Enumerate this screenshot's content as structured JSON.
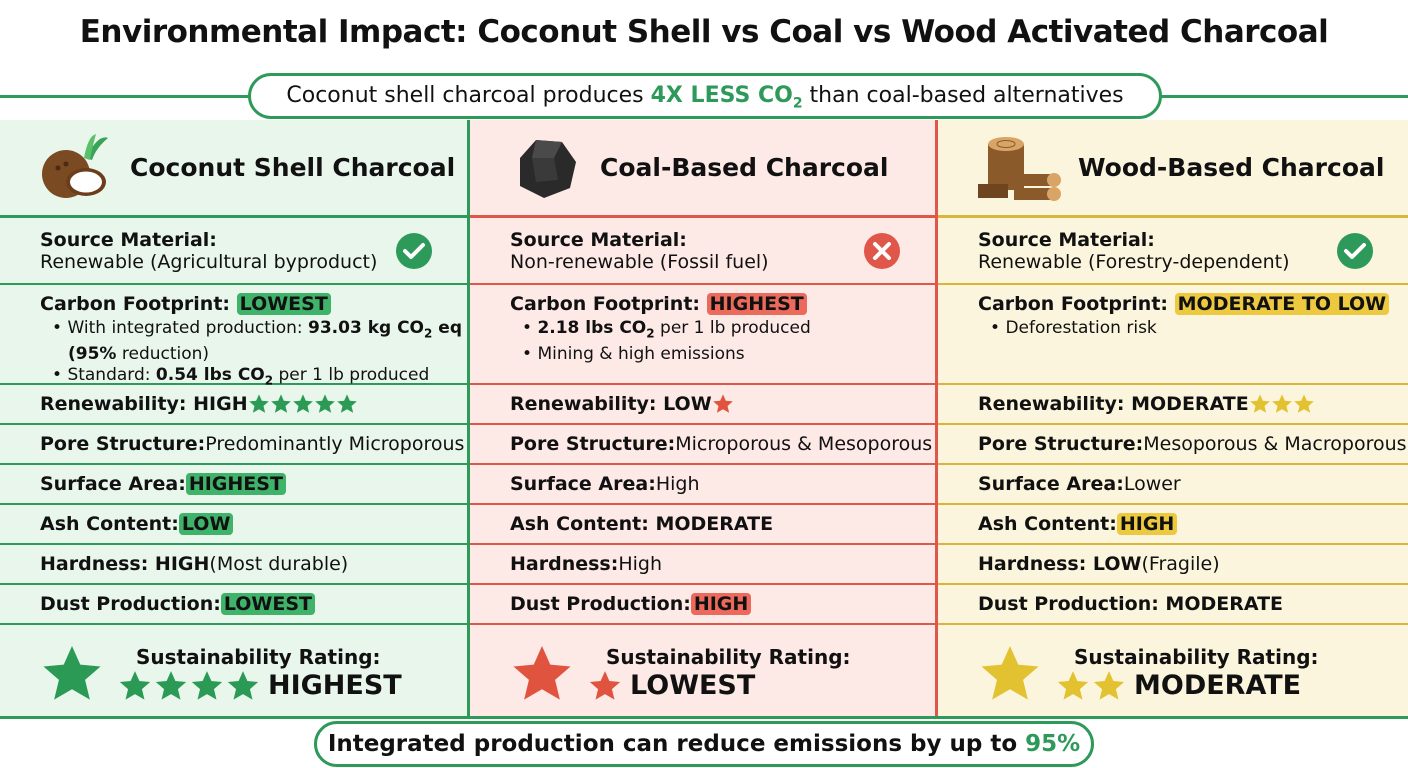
{
  "title": "Environmental Impact: Coconut Shell vs Coal vs Wood Activated Charcoal",
  "banner": {
    "pre": "Coconut shell charcoal produces ",
    "highlight": "4X LESS CO",
    "sub": "2",
    "post": " than coal-based alternatives"
  },
  "footer": {
    "pre": "Integrated production can reduce emissions by up to ",
    "highlight": "95%"
  },
  "colors": {
    "green": "#2e9a5a",
    "red": "#e0574a",
    "yellow": "#e3c232"
  },
  "columns": [
    {
      "name": "Coconut Shell Charcoal",
      "icon": "coconut-icon",
      "theme": "green",
      "bg": "#e9f6ec",
      "border": "#2e9a5a",
      "badge": "#3fb36a",
      "star": "#2a9a55",
      "source": {
        "label": "Source Material:",
        "value": "Renewable (Agricultural byproduct)",
        "status": "check-icon"
      },
      "carbon": {
        "label": "Carbon Footprint: ",
        "badge": "LOWEST",
        "bullets": [
          [
            {
              "t": "With integrated production: "
            },
            {
              "t": "93.03 kg CO",
              "b": true
            },
            {
              "t": "2",
              "b": true,
              "sub": true
            },
            {
              "t": " eq",
              "b": true
            },
            {
              "t": " "
            },
            {
              "t": "(95%",
              "b": true
            },
            {
              "t": " reduction)"
            }
          ],
          [
            {
              "t": "Standard: "
            },
            {
              "t": "0.54 lbs CO",
              "b": true
            },
            {
              "t": "2",
              "b": true,
              "sub": true
            },
            {
              "t": " per 1 lb produced"
            }
          ]
        ]
      },
      "rows": [
        {
          "label": "Renewability: HIGH",
          "stars": 5
        },
        {
          "label": "Pore Structure:",
          "value": "Predominantly Microporous"
        },
        {
          "label": "Surface Area:",
          "badge": "HIGHEST"
        },
        {
          "label": "Ash Content:",
          "badge": "LOW"
        },
        {
          "label": "Hardness: HIGH",
          "value": "(Most durable)"
        },
        {
          "label": "Dust Production:",
          "badge": "LOWEST"
        }
      ],
      "rating": {
        "label": "Sustainability Rating:",
        "stars": 4,
        "value": "HIGHEST"
      }
    },
    {
      "name": "Coal-Based Charcoal",
      "icon": "coal-icon",
      "theme": "red",
      "bg": "#fde9e6",
      "border": "#e0574a",
      "badge": "#ec6a5c",
      "star": "#e0533f",
      "source": {
        "label": "Source Material:",
        "value": "Non-renewable (Fossil fuel)",
        "status": "x-icon"
      },
      "carbon": {
        "label": "Carbon Footprint: ",
        "badge": "HIGHEST",
        "bullets": [
          [
            {
              "t": "2.18 lbs CO",
              "b": true
            },
            {
              "t": "2",
              "b": true,
              "sub": true
            },
            {
              "t": " per 1 lb produced"
            }
          ],
          [
            {
              "t": "Mining & high emissions"
            }
          ]
        ]
      },
      "rows": [
        {
          "label": "Renewability: LOW",
          "stars": 1
        },
        {
          "label": "Pore Structure:",
          "value": "Microporous & Mesoporous"
        },
        {
          "label": "Surface Area:",
          "value": "High"
        },
        {
          "label": "Ash Content: MODERATE"
        },
        {
          "label": "Hardness:",
          "value": "High"
        },
        {
          "label": "Dust Production:",
          "badge": "HIGH"
        }
      ],
      "rating": {
        "label": "Sustainability Rating:",
        "stars": 1,
        "value": "LOWEST"
      }
    },
    {
      "name": "Wood-Based Charcoal",
      "icon": "wood-log-icon",
      "theme": "yellow",
      "bg": "#fcf5de",
      "border": "#d9b53a",
      "badge": "#ecc93e",
      "star": "#e3c232",
      "source": {
        "label": "Source Material:",
        "value": "Renewable (Forestry-dependent)",
        "status": "check-icon"
      },
      "carbon": {
        "label": "Carbon Footprint: ",
        "badge": "MODERATE TO LOW",
        "bullets": [
          [
            {
              "t": "Deforestation risk"
            }
          ]
        ]
      },
      "rows": [
        {
          "label": "Renewability: MODERATE",
          "stars": 3
        },
        {
          "label": "Pore Structure:",
          "value": "Mesoporous & Macroporous"
        },
        {
          "label": "Surface Area:",
          "value": "Lower"
        },
        {
          "label": "Ash Content:",
          "badge": "HIGH"
        },
        {
          "label": "Hardness: LOW",
          "value": "(Fragile)"
        },
        {
          "label": "Dust Production: MODERATE"
        }
      ],
      "rating": {
        "label": "Sustainability Rating:",
        "stars": 2,
        "value": "MODERATE"
      }
    }
  ]
}
